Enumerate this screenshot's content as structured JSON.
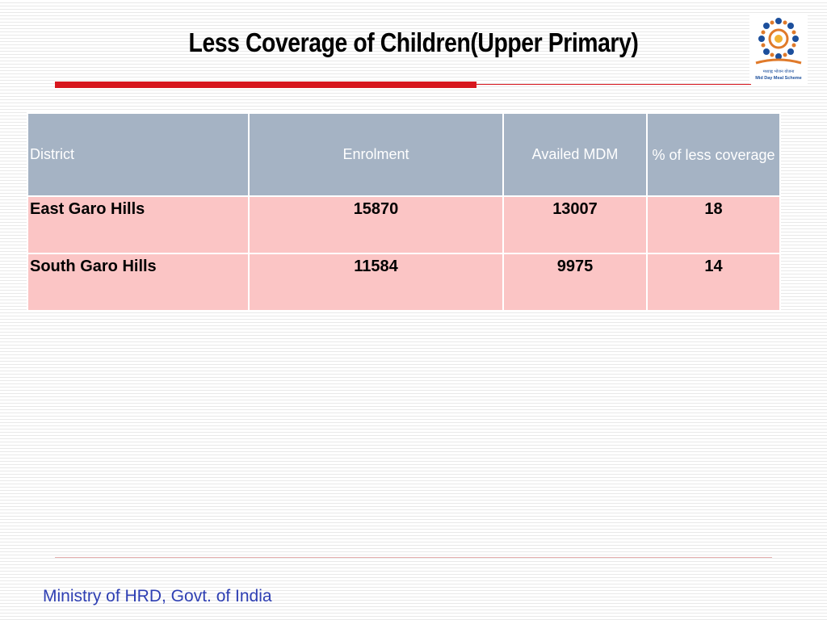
{
  "slide": {
    "title": "Less Coverage of Children(Upper Primary)",
    "footer": "Ministry of HRD, Govt. of India",
    "logo": {
      "icon": "mid-day-meal-scheme-logo",
      "hindi_text": "मध्याह्न भोजन योजना",
      "english_text": "Mid Day Meal Scheme"
    }
  },
  "table": {
    "headers": [
      "District",
      "Enrolment",
      "Availed MDM",
      "% of less coverage"
    ],
    "rows": [
      [
        "East Garo Hills",
        "15870",
        "13007",
        "18"
      ],
      [
        "South Garo Hills",
        "11584",
        "9975",
        "14"
      ]
    ]
  },
  "colors": {
    "accent_red": "#d7161d",
    "header_bg": "#a5b3c4",
    "row_bg": "#fbc5c5",
    "footer_text": "#2e3fb3"
  }
}
